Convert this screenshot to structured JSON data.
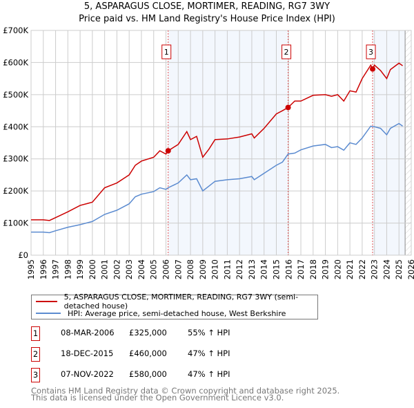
{
  "chart_data": {
    "type": "line",
    "title": "5, ASPARAGUS CLOSE, MORTIMER, READING, RG7 3WY",
    "subtitle": "Price paid vs. HM Land Registry's House Price Index (HPI)",
    "xlim": [
      1995,
      2026
    ],
    "ylim": [
      0,
      700000
    ],
    "y_ticks": [
      0,
      100000,
      200000,
      300000,
      400000,
      500000,
      600000,
      700000
    ],
    "y_tick_labels": [
      "£0",
      "£100K",
      "£200K",
      "£300K",
      "£400K",
      "£500K",
      "£600K",
      "£700K"
    ],
    "x_ticks": [
      1995,
      1996,
      1997,
      1998,
      1999,
      2000,
      2001,
      2002,
      2003,
      2004,
      2005,
      2006,
      2007,
      2008,
      2009,
      2010,
      2011,
      2012,
      2013,
      2014,
      2015,
      2016,
      2017,
      2018,
      2019,
      2020,
      2021,
      2022,
      2023,
      2024,
      2025,
      2026
    ],
    "grid": true,
    "data_end": 2025.5,
    "series": [
      {
        "name": "5, ASPARAGUS CLOSE, MORTIMER, READING, RG7 3WY (semi-detached house)",
        "color": "#cc0000",
        "x": [
          1995,
          1996,
          1996.5,
          1997,
          1998,
          1999,
          2000,
          2001,
          2002,
          2003,
          2003.5,
          2004,
          2005,
          2005.5,
          2006,
          2006.18,
          2007,
          2007.7,
          2008,
          2008.5,
          2009,
          2009.5,
          2010,
          2011,
          2012,
          2013,
          2013.2,
          2014,
          2015,
          2015.5,
          2015.96,
          2016.5,
          2017,
          2018,
          2019,
          2019.5,
          2020,
          2020.5,
          2021,
          2021.5,
          2022,
          2022.7,
          2022.85,
          2023,
          2023.5,
          2024,
          2024.3,
          2025,
          2025.3
        ],
        "values": [
          110000,
          110000,
          108000,
          117000,
          135000,
          155000,
          165000,
          210000,
          225000,
          250000,
          280000,
          293000,
          305000,
          325000,
          315000,
          325000,
          345000,
          385000,
          360000,
          370000,
          305000,
          330000,
          360000,
          362000,
          368000,
          378000,
          365000,
          395000,
          440000,
          450000,
          460000,
          480000,
          480000,
          498000,
          500000,
          495000,
          500000,
          480000,
          512000,
          508000,
          550000,
          592000,
          580000,
          592000,
          575000,
          550000,
          578000,
          598000,
          590000
        ]
      },
      {
        "name": "HPI: Average price, semi-detached house, West Berkshire",
        "color": "#5b8bd0",
        "x": [
          1995,
          1996,
          1996.5,
          1997,
          1998,
          1999,
          2000,
          2001,
          2002,
          2003,
          2003.5,
          2004,
          2005,
          2005.5,
          2006,
          2006.18,
          2007,
          2007.7,
          2008,
          2008.5,
          2009,
          2009.5,
          2010,
          2011,
          2012,
          2013,
          2013.2,
          2014,
          2015,
          2015.5,
          2015.96,
          2016.5,
          2017,
          2018,
          2019,
          2019.5,
          2020,
          2020.5,
          2021,
          2021.5,
          2022,
          2022.7,
          2022.85,
          2023,
          2023.5,
          2024,
          2024.3,
          2025,
          2025.3
        ],
        "values": [
          72000,
          72000,
          70000,
          76000,
          87000,
          95000,
          105000,
          127000,
          140000,
          160000,
          182000,
          190000,
          198000,
          210000,
          205000,
          210000,
          225000,
          250000,
          235000,
          238000,
          200000,
          215000,
          230000,
          235000,
          238000,
          245000,
          235000,
          255000,
          280000,
          290000,
          315000,
          318000,
          328000,
          340000,
          345000,
          335000,
          338000,
          327000,
          350000,
          345000,
          365000,
          402000,
          400000,
          400000,
          395000,
          375000,
          395000,
          410000,
          402000
        ]
      }
    ],
    "sales": [
      {
        "label": "1",
        "x": 2006.18,
        "date": "08-MAR-2006",
        "price": 325000,
        "price_label": "£325,000",
        "hpi_label": "55% ↑ HPI"
      },
      {
        "label": "2",
        "x": 2015.96,
        "date": "18-DEC-2015",
        "price": 460000,
        "price_label": "£460,000",
        "hpi_label": "47% ↑ HPI"
      },
      {
        "label": "3",
        "x": 2022.85,
        "date": "07-NOV-2022",
        "price": 580000,
        "price_label": "£580,000",
        "hpi_label": "47% ↑ HPI"
      }
    ]
  },
  "footer": {
    "line1": "Contains HM Land Registry data © Crown copyright and database right 2025.",
    "line2": "This data is licensed under the Open Government Licence v3.0."
  }
}
